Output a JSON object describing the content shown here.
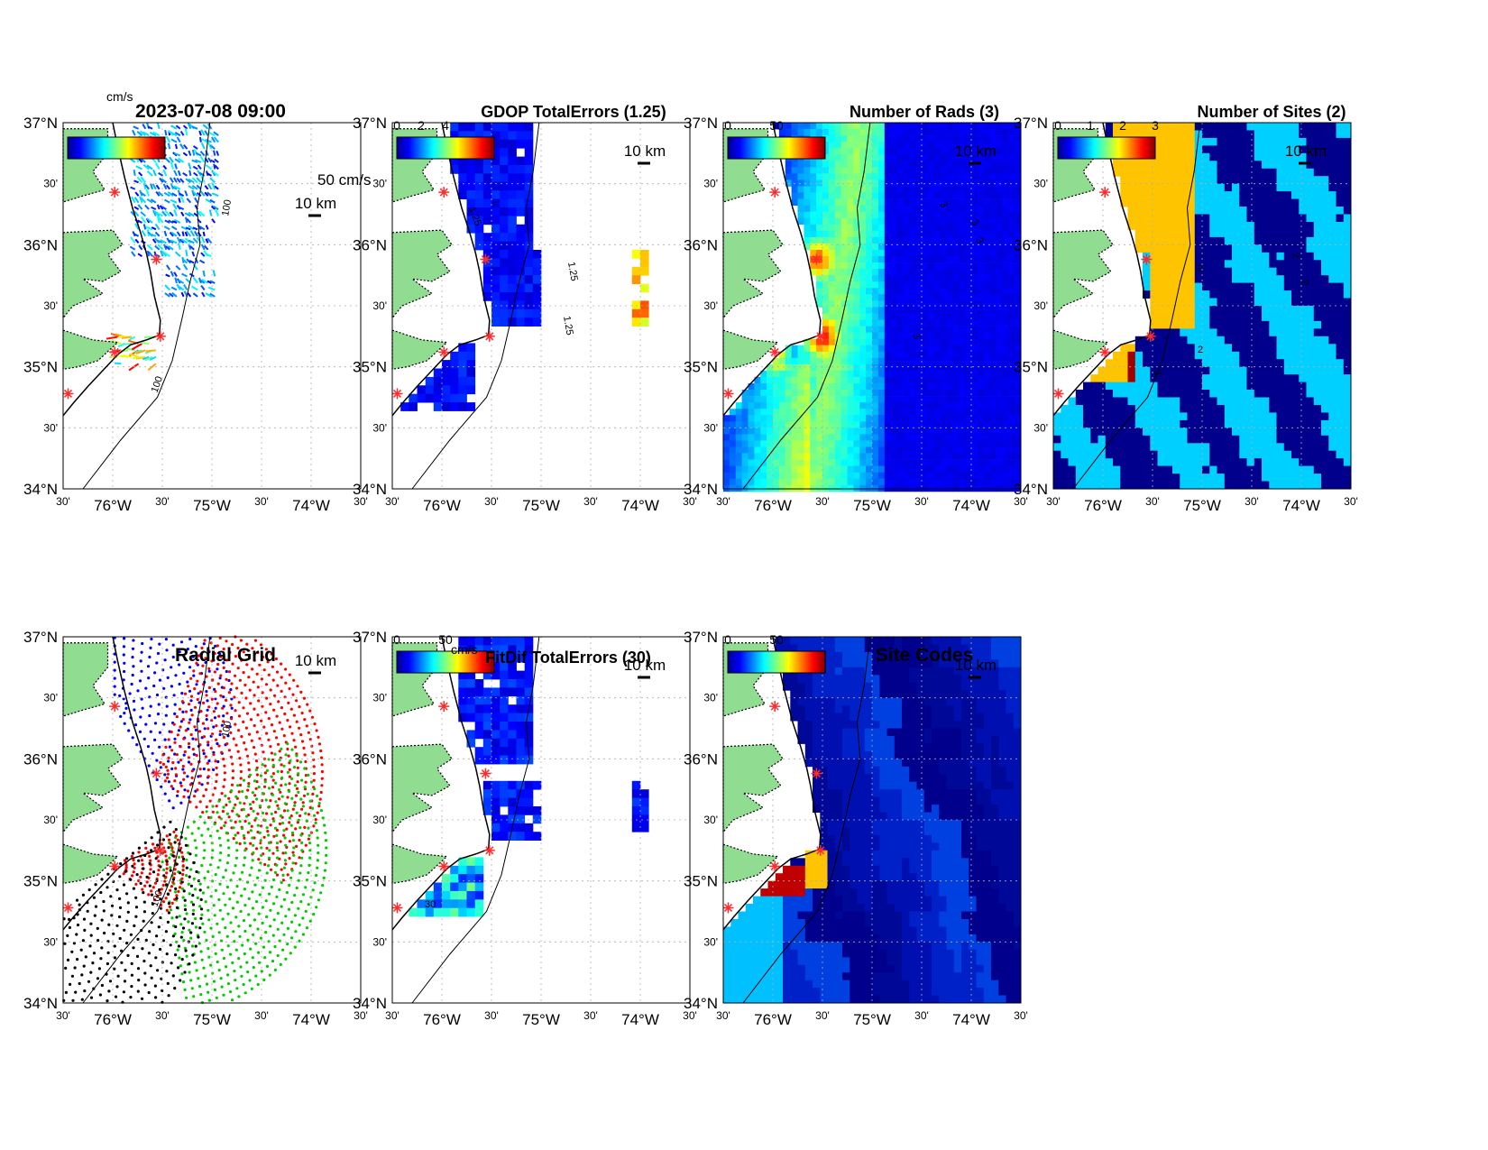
{
  "figure": {
    "timestamp": "2023-07-08 09:00",
    "vector_scale_label": "50 cm/s",
    "colorbar_unit": "cm/s",
    "scale_bar_label": "10 km"
  },
  "axes": {
    "y_labels": [
      "37°N",
      "30'",
      "36°N",
      "30'",
      "35°N",
      "30'",
      "34°N"
    ],
    "x_labels": [
      "30'",
      "76°W",
      "30'",
      "75°W",
      "30'",
      "74°W",
      "30'"
    ]
  },
  "colors": {
    "land": "#90dc90",
    "coast": "#000000",
    "site_marker": "#ff2a2a",
    "grid": "#b0b0b0",
    "low": "#0a20c8",
    "ocean_dark": "#00008c",
    "cyan": "#00d0ff",
    "orange": "#ffc400",
    "darkred": "#a00000"
  },
  "chart_data": [
    {
      "panel": "currents",
      "type": "vector-map",
      "title": "2023-07-08 09:00",
      "colorbar": {
        "unit": "cm/s",
        "ticks": []
      },
      "contour_labels": [
        "100",
        "100"
      ],
      "ylim": [
        34,
        37
      ],
      "xlim": [
        -76.5,
        -73.5
      ]
    },
    {
      "panel": "gdop",
      "type": "heatmap",
      "title": "GDOP TotalErrors (1.25)",
      "colorbar": {
        "ticks": [
          "0",
          "2",
          "4"
        ]
      },
      "contour_labels": [
        "1.25",
        "1.25",
        "1.25"
      ],
      "ylim": [
        34,
        37
      ],
      "xlim": [
        -76.5,
        -73.5
      ]
    },
    {
      "panel": "rads",
      "type": "heatmap",
      "title": "Number of Rads (3)",
      "colorbar": {
        "ticks": [
          "0",
          "50"
        ]
      },
      "contour_labels": [
        "3",
        "3",
        "3",
        "3"
      ],
      "ylim": [
        34,
        37
      ],
      "xlim": [
        -76.5,
        -73.5
      ]
    },
    {
      "panel": "sites",
      "type": "heatmap",
      "title": "Number of Sites (2)",
      "colorbar": {
        "ticks": [
          "0",
          "1",
          "2",
          "3"
        ]
      },
      "contour_labels": [
        "2",
        "2",
        "2",
        "2",
        "2"
      ],
      "ylim": [
        34,
        37
      ],
      "xlim": [
        -76.5,
        -73.5
      ]
    },
    {
      "panel": "radial",
      "type": "scatter",
      "title": "Radial Grid",
      "series": [
        {
          "color": "#0000ff",
          "center": [
            -75.98,
            36.43
          ]
        },
        {
          "color": "#ff0000",
          "center": [
            -75.56,
            35.88
          ]
        },
        {
          "color": "#00cc00",
          "center": [
            -75.52,
            35.25
          ]
        },
        {
          "color": "#ff0000",
          "center": [
            -75.98,
            35.12
          ]
        },
        {
          "color": "#000000",
          "center": [
            -76.45,
            34.78
          ]
        }
      ],
      "contour_labels": [
        "100",
        "100"
      ],
      "ylim": [
        34,
        37
      ],
      "xlim": [
        -76.5,
        -73.5
      ]
    },
    {
      "panel": "fitdif",
      "type": "heatmap",
      "title": "FitDif TotalErrors (30)",
      "colorbar": {
        "unit": "cm/s",
        "ticks": [
          "0",
          "50"
        ]
      },
      "contour_labels": [
        "30"
      ],
      "ylim": [
        34,
        37
      ],
      "xlim": [
        -76.5,
        -73.5
      ]
    },
    {
      "panel": "codes",
      "type": "heatmap",
      "title": "Site Codes",
      "colorbar": {
        "ticks": [
          "0",
          "50"
        ]
      },
      "ylim": [
        34,
        37
      ],
      "xlim": [
        -76.5,
        -73.5
      ]
    }
  ]
}
